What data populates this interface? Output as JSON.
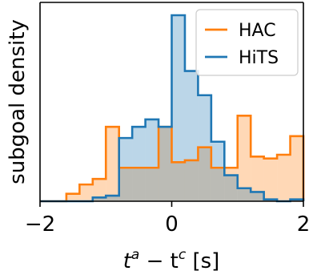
{
  "chart_data": {
    "type": "bar",
    "subtype": "step-histogram",
    "title": "",
    "xlabel_main": "t",
    "xlabel_sup1": "a",
    "xlabel_mid": " − t",
    "xlabel_sup2": "c",
    "xlabel_unit": " [s]",
    "ylabel": "subgoal density",
    "xlim": [
      -2.0,
      2.0
    ],
    "ylim": [
      0,
      1
    ],
    "xticks": [
      -2,
      0,
      2
    ],
    "xtick_labels": [
      "−2",
      "0",
      "2"
    ],
    "yticks_shown": false,
    "legend_position": "top-right",
    "bin_edges": [
      -2.0,
      -1.8,
      -1.6,
      -1.4,
      -1.2,
      -1.0,
      -0.8,
      -0.6,
      -0.4,
      -0.2,
      0.0,
      0.2,
      0.4,
      0.6,
      0.8,
      1.0,
      1.2,
      1.4,
      1.6,
      1.8,
      2.0
    ],
    "series": [
      {
        "name": "HAC",
        "color": "#ff7f0e",
        "values": [
          0.0,
          0.0,
          0.04,
          0.09,
          0.12,
          0.4,
          0.18,
          0.18,
          0.18,
          0.4,
          0.21,
          0.22,
          0.29,
          0.18,
          0.18,
          0.46,
          0.24,
          0.23,
          0.25,
          0.35
        ]
      },
      {
        "name": "HiTS",
        "color": "#1f77b4",
        "values": [
          0.0,
          0.0,
          0.0,
          0.0,
          0.02,
          0.03,
          0.34,
          0.4,
          0.44,
          0.4,
          1.0,
          0.7,
          0.57,
          0.32,
          0.14,
          0.07,
          0.05,
          0.01,
          0.0,
          0.01
        ]
      }
    ]
  }
}
